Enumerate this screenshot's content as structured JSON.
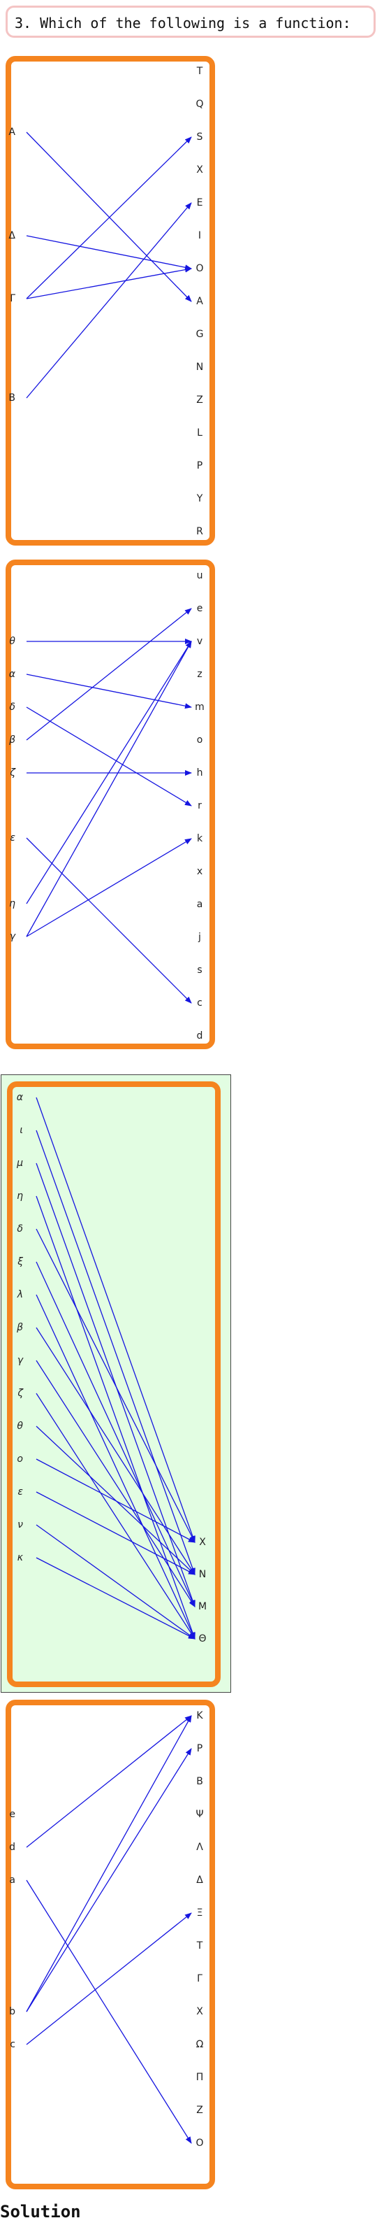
{
  "question": {
    "text": "3. Which of the following is a function:"
  },
  "solution_label": "Solution",
  "colors": {
    "box_border": "#f5841f",
    "arrow": "#1515e0",
    "highlight_bg": "#e2fde2",
    "question_border": "#f4c4c4"
  },
  "highlighted_option": 2,
  "options": [
    {
      "left": [
        "A",
        "Δ",
        "Γ",
        "B"
      ],
      "right": [
        "T",
        "Q",
        "S",
        "X",
        "E",
        "I",
        "O",
        "A",
        "G",
        "N",
        "Z",
        "L",
        "P",
        "Y",
        "R"
      ],
      "pairs": [
        [
          "A",
          "A"
        ],
        [
          "Δ",
          "O"
        ],
        [
          "Γ",
          "S"
        ],
        [
          "Γ",
          "O"
        ],
        [
          "B",
          "E"
        ]
      ]
    },
    {
      "left": [
        "θ",
        "α",
        "δ",
        "β",
        "ζ",
        "ε",
        "η",
        "γ"
      ],
      "right": [
        "u",
        "e",
        "v",
        "z",
        "m",
        "o",
        "h",
        "r",
        "k",
        "x",
        "a",
        "j",
        "s",
        "c",
        "d"
      ],
      "pairs": [
        [
          "θ",
          "v"
        ],
        [
          "α",
          "m"
        ],
        [
          "δ",
          "r"
        ],
        [
          "β",
          "e"
        ],
        [
          "ζ",
          "h"
        ],
        [
          "ε",
          "c"
        ],
        [
          "η",
          "v"
        ],
        [
          "γ",
          "v"
        ],
        [
          "γ",
          "k"
        ]
      ]
    },
    {
      "left": [
        "α",
        "ι",
        "μ",
        "η",
        "δ",
        "ξ",
        "λ",
        "β",
        "γ",
        "ζ",
        "θ",
        "ο",
        "ε",
        "ν",
        "κ"
      ],
      "right": [
        "X",
        "N",
        "M",
        "Θ"
      ],
      "pairs": [
        [
          "α",
          "X"
        ],
        [
          "ι",
          "N"
        ],
        [
          "μ",
          "M"
        ],
        [
          "η",
          "Θ"
        ],
        [
          "δ",
          "X"
        ],
        [
          "ξ",
          "M"
        ],
        [
          "λ",
          "Θ"
        ],
        [
          "β",
          "N"
        ],
        [
          "γ",
          "M"
        ],
        [
          "ζ",
          "Θ"
        ],
        [
          "θ",
          "N"
        ],
        [
          "ο",
          "X"
        ],
        [
          "ε",
          "N"
        ],
        [
          "ν",
          "Θ"
        ],
        [
          "κ",
          "Θ"
        ]
      ]
    },
    {
      "left": [
        "e",
        "d",
        "a",
        "b",
        "c"
      ],
      "right": [
        "K",
        "P",
        "B",
        "Ψ",
        "Λ",
        "Δ",
        "Ξ",
        "T",
        "Γ",
        "X",
        "Ω",
        "Π",
        "Z",
        "O"
      ],
      "pairs": [
        [
          "d",
          "K"
        ],
        [
          "a",
          "O"
        ],
        [
          "b",
          "K"
        ],
        [
          "b",
          "P"
        ],
        [
          "c",
          "Ξ"
        ]
      ]
    }
  ]
}
